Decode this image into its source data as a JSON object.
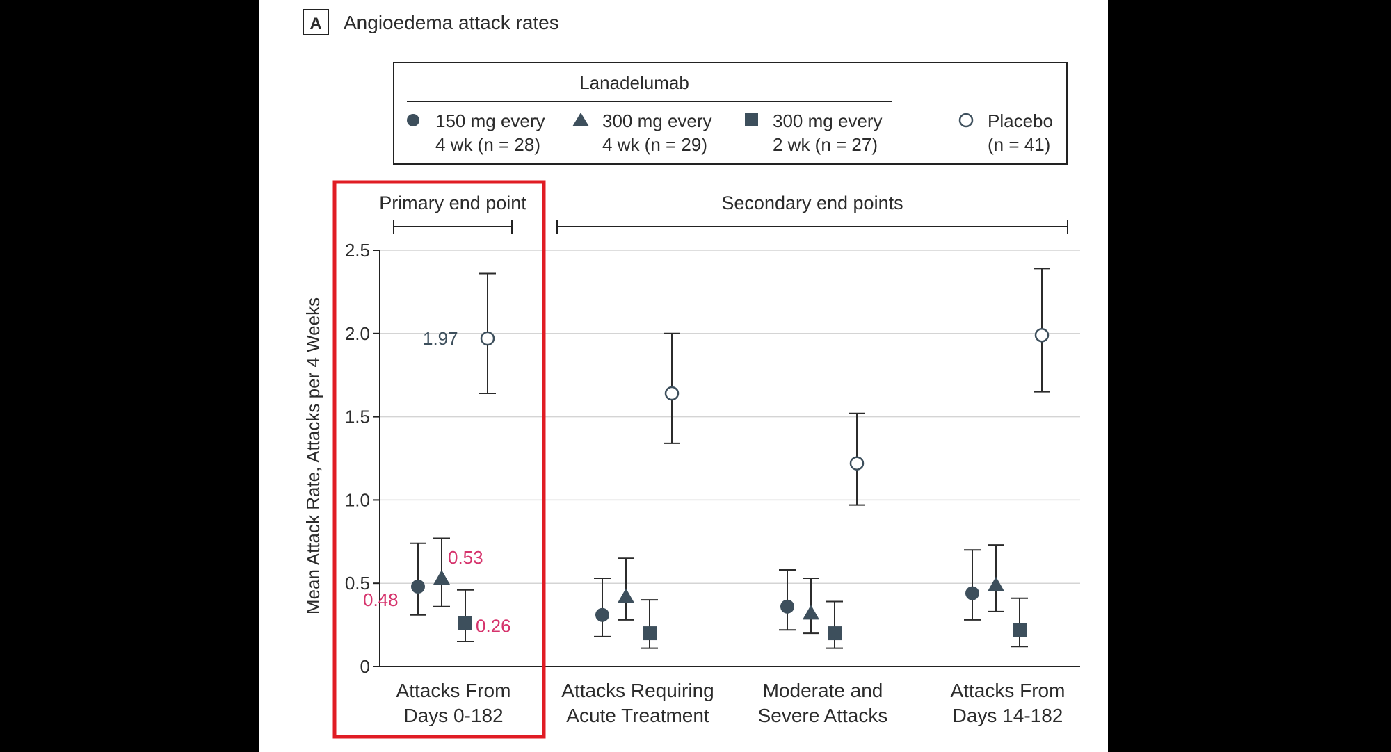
{
  "panel": {
    "letter": "A",
    "title": "Angioedema attack rates"
  },
  "legend": {
    "group_label": "Lanadelumab",
    "items": [
      {
        "marker": "circle",
        "line1": "150 mg every",
        "line2": "4 wk (n = 28)"
      },
      {
        "marker": "triangle",
        "line1": "300 mg every",
        "line2": "4 wk (n = 29)"
      },
      {
        "marker": "square",
        "line1": "300 mg every",
        "line2": "2 wk (n = 27)"
      },
      {
        "marker": "open-circle",
        "line1": "Placebo",
        "line2": "(n = 41)"
      }
    ]
  },
  "brackets": {
    "primary": "Primary end point",
    "secondary": "Secondary end points"
  },
  "colors": {
    "marker": "#3d4f5c",
    "highlight": "#e01c24",
    "annotation": "#d6336c",
    "annotation_dark": "#3d4f5c"
  },
  "chart_data": {
    "type": "scatter",
    "title": "Angioedema attack rates",
    "xlabel": "",
    "ylabel": "Mean Attack Rate, Attacks per 4 Weeks",
    "ylim": [
      0,
      2.5
    ],
    "yticks": [
      0,
      0.5,
      1.0,
      1.5,
      2.0,
      2.5
    ],
    "ytick_labels": [
      "0",
      "0.5",
      "1.0",
      "1.5",
      "2.0",
      "2.5"
    ],
    "grid": true,
    "categories": [
      [
        "Attacks From",
        "Days 0-182"
      ],
      [
        "Attacks Requiring",
        "Acute Treatment"
      ],
      [
        "Moderate and",
        "Severe Attacks"
      ],
      [
        "Attacks From",
        "Days 14-182"
      ]
    ],
    "series": [
      {
        "name": "150 mg every 4 wk (n = 28)",
        "marker": "circle",
        "values": [
          0.48,
          0.31,
          0.36,
          0.44
        ],
        "lower": [
          0.31,
          0.18,
          0.22,
          0.28
        ],
        "upper": [
          0.74,
          0.53,
          0.58,
          0.7
        ]
      },
      {
        "name": "300 mg every 4 wk (n = 29)",
        "marker": "triangle",
        "values": [
          0.53,
          0.42,
          0.32,
          0.49
        ],
        "lower": [
          0.36,
          0.28,
          0.2,
          0.33
        ],
        "upper": [
          0.77,
          0.65,
          0.53,
          0.73
        ]
      },
      {
        "name": "300 mg every 2 wk (n = 27)",
        "marker": "square",
        "values": [
          0.26,
          0.2,
          0.2,
          0.22
        ],
        "lower": [
          0.15,
          0.11,
          0.11,
          0.12
        ],
        "upper": [
          0.46,
          0.4,
          0.39,
          0.41
        ]
      },
      {
        "name": "Placebo (n = 41)",
        "marker": "open-circle",
        "values": [
          1.97,
          1.64,
          1.22,
          1.99
        ],
        "lower": [
          1.64,
          1.34,
          0.97,
          1.65
        ],
        "upper": [
          2.36,
          2.0,
          1.52,
          2.39
        ]
      }
    ],
    "annotations": [
      {
        "series": 0,
        "category": 0,
        "text": "0.48"
      },
      {
        "series": 1,
        "category": 0,
        "text": "0.53"
      },
      {
        "series": 2,
        "category": 0,
        "text": "0.26"
      },
      {
        "series": 3,
        "category": 0,
        "text": "1.97"
      }
    ]
  }
}
